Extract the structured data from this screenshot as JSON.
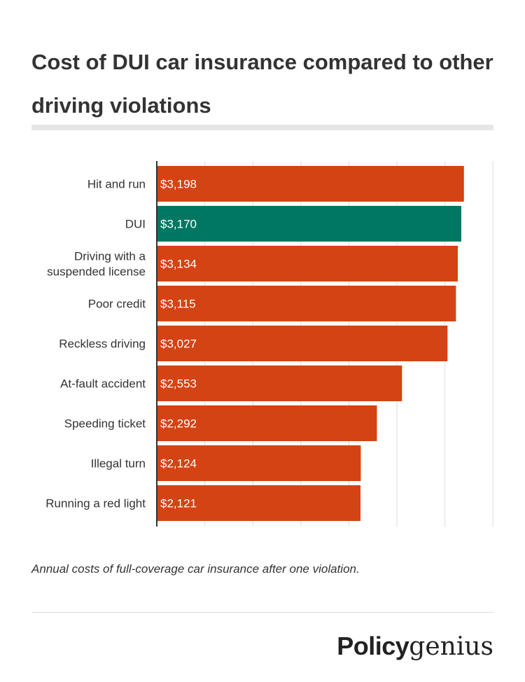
{
  "title": "Cost of DUI car insurance compared to other driving violations",
  "caption": "Annual costs of full-coverage car insurance after one violation.",
  "logo": {
    "part1": "Policy",
    "part2": "genius"
  },
  "colors": {
    "default_bar": "#d44314",
    "highlight_bar": "#007763",
    "grid": "#dddddd",
    "axis": "#333333"
  },
  "chart_data": {
    "type": "bar",
    "orientation": "horizontal",
    "categories": [
      [
        "Hit and run"
      ],
      [
        "DUI"
      ],
      [
        "Driving with a",
        "suspended license"
      ],
      [
        "Poor credit"
      ],
      [
        "Reckless driving"
      ],
      [
        "At-fault accident"
      ],
      [
        "Speeding ticket"
      ],
      [
        "Illegal turn"
      ],
      [
        "Running a red light"
      ]
    ],
    "values": [
      3198,
      3170,
      3134,
      3115,
      3027,
      2553,
      2292,
      2124,
      2121
    ],
    "labels": [
      "$3,198",
      "$3,170",
      "$3,134",
      "$3,115",
      "$3,027",
      "$2,553",
      "$2,292",
      "$2,124",
      "$2,121"
    ],
    "highlight": "DUI",
    "xlim": [
      0,
      3500
    ],
    "grid": true,
    "gridlines": [
      0,
      500,
      1000,
      1500,
      2000,
      2500,
      3000,
      3500
    ],
    "xlabel": "",
    "ylabel": ""
  }
}
